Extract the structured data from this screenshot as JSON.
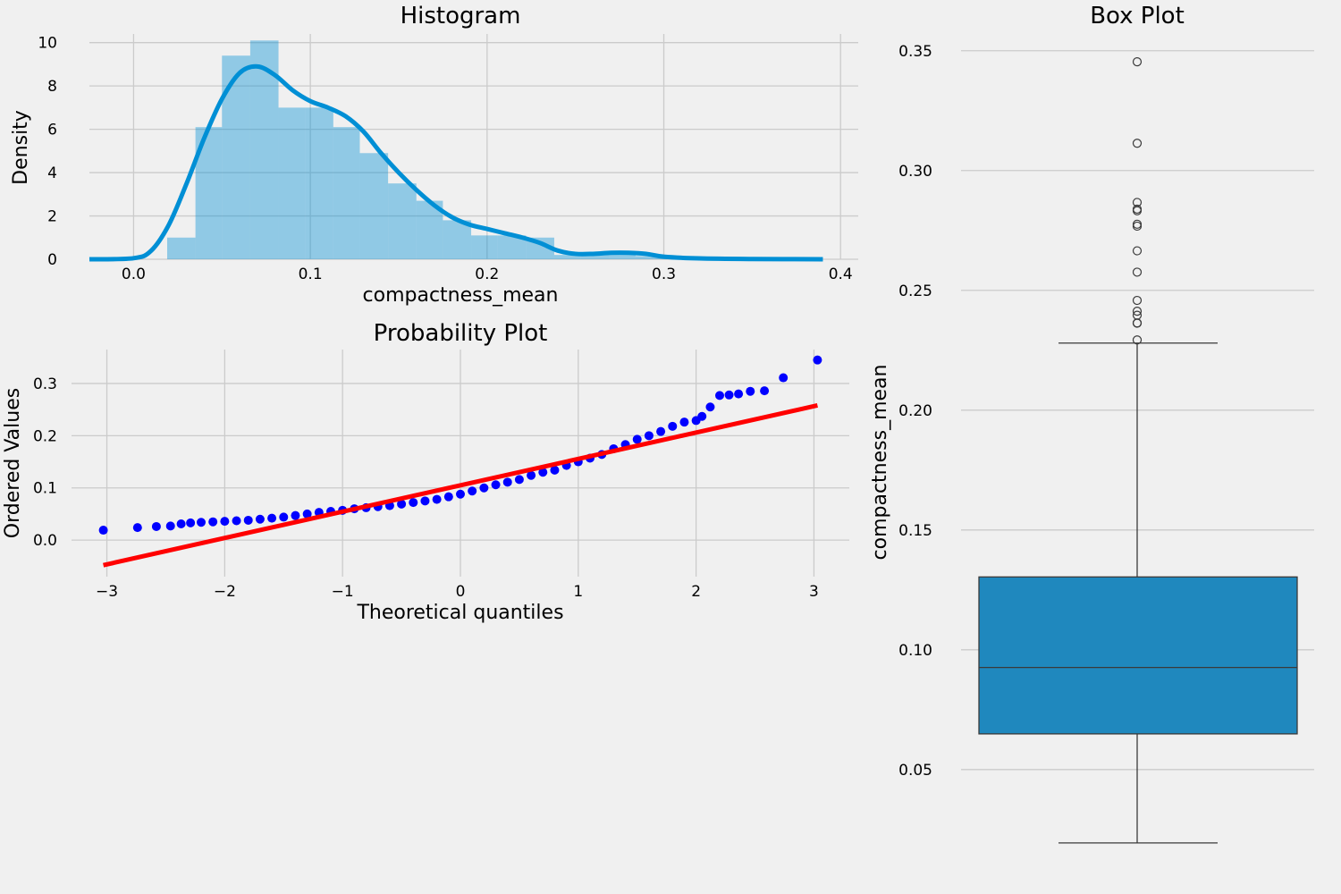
{
  "chart_data": [
    {
      "type": "bar",
      "title": "Histogram",
      "xlabel": "compactness_mean",
      "ylabel": "Density",
      "xlim": [
        -0.025,
        0.41
      ],
      "ylim": [
        0,
        10.4
      ],
      "xticks": [
        0.0,
        0.1,
        0.2,
        0.3,
        0.4
      ],
      "xtick_labels": [
        "0.0",
        "0.1",
        "0.2",
        "0.3",
        "0.4"
      ],
      "yticks": [
        0,
        2,
        4,
        6,
        8,
        10
      ],
      "ytick_labels": [
        "0",
        "2",
        "4",
        "6",
        "8",
        "10"
      ],
      "grid": true,
      "bar_color": "#008fd5",
      "bins": [
        {
          "x0": 0.019,
          "x1": 0.035,
          "density": 1.0
        },
        {
          "x0": 0.035,
          "x1": 0.05,
          "density": 6.1
        },
        {
          "x0": 0.05,
          "x1": 0.066,
          "density": 9.4
        },
        {
          "x0": 0.066,
          "x1": 0.082,
          "density": 10.1
        },
        {
          "x0": 0.082,
          "x1": 0.097,
          "density": 7.0
        },
        {
          "x0": 0.097,
          "x1": 0.113,
          "density": 7.0
        },
        {
          "x0": 0.113,
          "x1": 0.128,
          "density": 6.1
        },
        {
          "x0": 0.128,
          "x1": 0.144,
          "density": 4.9
        },
        {
          "x0": 0.144,
          "x1": 0.16,
          "density": 3.5
        },
        {
          "x0": 0.16,
          "x1": 0.175,
          "density": 2.7
        },
        {
          "x0": 0.175,
          "x1": 0.191,
          "density": 1.8
        },
        {
          "x0": 0.191,
          "x1": 0.206,
          "density": 1.1
        },
        {
          "x0": 0.206,
          "x1": 0.222,
          "density": 1.1
        },
        {
          "x0": 0.222,
          "x1": 0.238,
          "density": 1.0
        },
        {
          "x0": 0.238,
          "x1": 0.253,
          "density": 0.2
        },
        {
          "x0": 0.253,
          "x1": 0.269,
          "density": 0.3
        },
        {
          "x0": 0.269,
          "x1": 0.284,
          "density": 0.35
        },
        {
          "x0": 0.284,
          "x1": 0.3,
          "density": 0.15
        },
        {
          "x0": 0.3,
          "x1": 0.316,
          "density": 0.1
        },
        {
          "x0": 0.316,
          "x1": 0.331,
          "density": 0.05
        },
        {
          "x0": 0.331,
          "x1": 0.347,
          "density": 0.05
        }
      ],
      "kde": {
        "color": "#008fd5",
        "x": [
          -0.025,
          0.0,
          0.01,
          0.02,
          0.03,
          0.04,
          0.05,
          0.06,
          0.07,
          0.08,
          0.09,
          0.1,
          0.11,
          0.12,
          0.13,
          0.14,
          0.15,
          0.16,
          0.17,
          0.18,
          0.19,
          0.2,
          0.21,
          0.22,
          0.23,
          0.24,
          0.25,
          0.26,
          0.27,
          0.28,
          0.29,
          0.3,
          0.32,
          0.35,
          0.39
        ],
        "y": [
          0.0,
          0.05,
          0.4,
          1.6,
          3.5,
          5.6,
          7.4,
          8.6,
          8.9,
          8.5,
          7.8,
          7.3,
          7.0,
          6.6,
          5.9,
          4.9,
          4.0,
          3.2,
          2.5,
          1.95,
          1.6,
          1.4,
          1.2,
          1.0,
          0.75,
          0.4,
          0.25,
          0.25,
          0.3,
          0.3,
          0.25,
          0.12,
          0.04,
          0.01,
          0.0
        ]
      }
    },
    {
      "type": "scatter",
      "title": "Probability Plot",
      "xlabel": "Theoretical quantiles",
      "ylabel": "Ordered Values",
      "xlim": [
        -3.3,
        3.3
      ],
      "ylim": [
        -0.07,
        0.365
      ],
      "xticks": [
        -3,
        -2,
        -1,
        0,
        1,
        2,
        3
      ],
      "xtick_labels": [
        "−3",
        "−2",
        "−1",
        "0",
        "1",
        "2",
        "3"
      ],
      "yticks": [
        0.0,
        0.1,
        0.2,
        0.3
      ],
      "ytick_labels": [
        "0.0",
        "0.1",
        "0.2",
        "0.3"
      ],
      "grid": true,
      "marker_color": "#0000ff",
      "points": {
        "x": [
          -3.03,
          -2.74,
          -2.58,
          -2.46,
          -2.37,
          -2.29,
          -2.2,
          -2.1,
          -2.0,
          -1.9,
          -1.8,
          -1.7,
          -1.6,
          -1.5,
          -1.4,
          -1.3,
          -1.2,
          -1.1,
          -1.0,
          -0.9,
          -0.8,
          -0.7,
          -0.6,
          -0.5,
          -0.4,
          -0.3,
          -0.2,
          -0.1,
          0.0,
          0.1,
          0.2,
          0.3,
          0.4,
          0.5,
          0.6,
          0.7,
          0.8,
          0.9,
          1.0,
          1.1,
          1.2,
          1.3,
          1.4,
          1.5,
          1.6,
          1.7,
          1.8,
          1.9,
          2.0,
          2.05,
          2.12,
          2.2,
          2.28,
          2.36,
          2.46,
          2.58,
          2.74,
          3.03
        ],
        "y": [
          0.019,
          0.024,
          0.026,
          0.027,
          0.031,
          0.033,
          0.034,
          0.035,
          0.036,
          0.037,
          0.038,
          0.04,
          0.042,
          0.044,
          0.047,
          0.05,
          0.053,
          0.055,
          0.057,
          0.06,
          0.062,
          0.064,
          0.066,
          0.069,
          0.072,
          0.075,
          0.078,
          0.083,
          0.088,
          0.094,
          0.1,
          0.106,
          0.111,
          0.116,
          0.124,
          0.13,
          0.134,
          0.143,
          0.15,
          0.157,
          0.164,
          0.175,
          0.183,
          0.193,
          0.2,
          0.208,
          0.218,
          0.226,
          0.229,
          0.237,
          0.255,
          0.277,
          0.278,
          0.28,
          0.285,
          0.286,
          0.311,
          0.345
        ]
      },
      "fit_line": {
        "color": "#ff0000",
        "x": [
          -3.03,
          3.03
        ],
        "y": [
          -0.048,
          0.258
        ]
      }
    },
    {
      "type": "box",
      "title": "Box Plot",
      "ylabel": "compactness_mean",
      "ylim": [
        0.013,
        0.357
      ],
      "yticks": [
        0.05,
        0.1,
        0.15,
        0.2,
        0.25,
        0.3,
        0.35
      ],
      "ytick_labels": [
        "0.05",
        "0.10",
        "0.15",
        "0.20",
        "0.25",
        "0.30",
        "0.35"
      ],
      "grid": true,
      "box_color": "#1f88be",
      "whisker_low": 0.0194,
      "q1": 0.0649,
      "median": 0.0926,
      "q3": 0.1304,
      "whisker_high": 0.228,
      "outliers": [
        0.2293,
        0.2363,
        0.2364,
        0.2396,
        0.2413,
        0.2458,
        0.2576,
        0.2665,
        0.2768,
        0.2776,
        0.2832,
        0.2839,
        0.2867,
        0.3114,
        0.3454
      ]
    }
  ]
}
